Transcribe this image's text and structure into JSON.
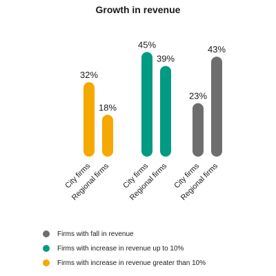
{
  "chart_data": {
    "type": "bar",
    "title": "Growth in revenue",
    "groups": [
      {
        "series": "Firms with increase in revenue greater than 10%",
        "color": "#F5A800",
        "bars": [
          {
            "category": "City firms",
            "value": 32,
            "label": "32%"
          },
          {
            "category": "Regional firms",
            "value": 18,
            "label": "18%"
          }
        ]
      },
      {
        "series": "Firms with increase in revenue up to 10%",
        "color": "#009B82",
        "bars": [
          {
            "category": "City firms",
            "value": 45,
            "label": "45%"
          },
          {
            "category": "Regional firms",
            "value": 39,
            "label": "39%"
          }
        ]
      },
      {
        "series": "Firms with fall in revenue",
        "color": "#6E6E6E",
        "bars": [
          {
            "category": "City firms",
            "value": 23,
            "label": "23%"
          },
          {
            "category": "Regional firms",
            "value": 43,
            "label": "43%"
          }
        ]
      }
    ],
    "legend": [
      {
        "label": "Firms with fall in revenue",
        "color": "#6E6E6E"
      },
      {
        "label": "Firms with increase in revenue up to 10%",
        "color": "#009B82"
      },
      {
        "label": "Firms with increase in revenue greater than 10%",
        "color": "#F5A800"
      }
    ],
    "legend_position": "bottom",
    "grid": false,
    "ylim": [
      0,
      50
    ]
  }
}
